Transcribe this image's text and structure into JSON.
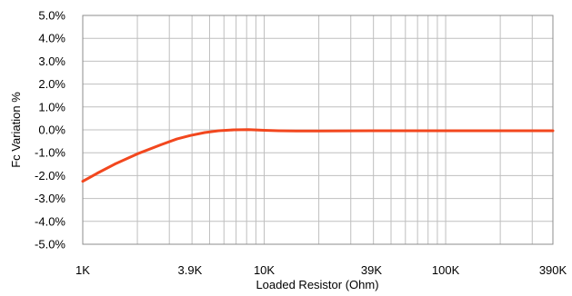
{
  "chart_data": {
    "type": "line",
    "xlabel": "Loaded Resistor (Ohm)",
    "ylabel": "Fc Variation %",
    "x_scale": "log",
    "x_ticks": [
      {
        "value": 1000,
        "label": "1K"
      },
      {
        "value": 3900,
        "label": "3.9K"
      },
      {
        "value": 10000,
        "label": "10K"
      },
      {
        "value": 39000,
        "label": "39K"
      },
      {
        "value": 100000,
        "label": "100K"
      },
      {
        "value": 390000,
        "label": "390K"
      }
    ],
    "xlim": [
      1000,
      390000
    ],
    "y_ticks": [
      {
        "value": 5,
        "label": "5.0%"
      },
      {
        "value": 4,
        "label": "4.0%"
      },
      {
        "value": 3,
        "label": "3.0%"
      },
      {
        "value": 2,
        "label": "2.0%"
      },
      {
        "value": 1,
        "label": "1.0%"
      },
      {
        "value": 0,
        "label": "0.0%"
      },
      {
        "value": -1,
        "label": "-1.0%"
      },
      {
        "value": -2,
        "label": "-2.0%"
      },
      {
        "value": -3,
        "label": "-3.0%"
      },
      {
        "value": -4,
        "label": "-4.0%"
      },
      {
        "value": -5,
        "label": "-5.0%"
      }
    ],
    "ylim": [
      -5,
      5
    ],
    "grid": true,
    "series": [
      {
        "color": "#f2471e",
        "points": [
          {
            "x": 1000,
            "y": -2.25
          },
          {
            "x": 1200,
            "y": -1.9
          },
          {
            "x": 1500,
            "y": -1.5
          },
          {
            "x": 2000,
            "y": -1.05
          },
          {
            "x": 2700,
            "y": -0.65
          },
          {
            "x": 3300,
            "y": -0.4
          },
          {
            "x": 3900,
            "y": -0.25
          },
          {
            "x": 4700,
            "y": -0.12
          },
          {
            "x": 5600,
            "y": -0.04
          },
          {
            "x": 6800,
            "y": 0.0
          },
          {
            "x": 8200,
            "y": 0.01
          },
          {
            "x": 10000,
            "y": -0.02
          },
          {
            "x": 12000,
            "y": -0.04
          },
          {
            "x": 15000,
            "y": -0.05
          },
          {
            "x": 20000,
            "y": -0.05
          },
          {
            "x": 39000,
            "y": -0.04
          },
          {
            "x": 100000,
            "y": -0.04
          },
          {
            "x": 390000,
            "y": -0.04
          }
        ]
      }
    ]
  }
}
